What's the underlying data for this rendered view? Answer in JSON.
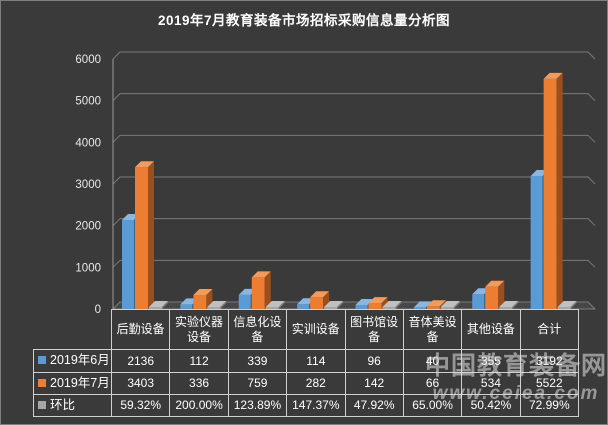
{
  "title": "2019年7月教育装备市场招标采购信息量分析图",
  "watermark": {
    "line1": "中国教育装备网",
    "line2": "www.ceiea.com"
  },
  "colors": {
    "background": "#3A3A3A",
    "frame_border": "#7E7E7E",
    "text": "#FFFFFF",
    "gridline": "#7A7A7A",
    "axis": "#9A9A9A",
    "floor_fill": "#474747",
    "floor_edge": "#909090",
    "table_border": "#D0D0D0",
    "series_blue": "#5B9BD5",
    "series_blue_top": "#8AB6E0",
    "series_blue_side": "#39658C",
    "series_orange": "#ED7D31",
    "series_orange_top": "#F09C60",
    "series_orange_side": "#9C4F1D",
    "series_gray": "#A6A6A6",
    "series_gray_top": "#C0C0C0",
    "series_gray_side": "#7B7B7B"
  },
  "chart_data": {
    "type": "bar",
    "style": "3d-clustered-column",
    "title": "2019年7月教育装备市场招标采购信息量分析图",
    "categories": [
      "后勤设备",
      "实验仪器设备",
      "信息化设备",
      "实训设备",
      "图书馆设备",
      "音体美设备",
      "其他设备",
      "合计"
    ],
    "series": [
      {
        "name": "2019年6月",
        "color": "#5B9BD5",
        "values": [
          2136,
          112,
          339,
          114,
          96,
          40,
          355,
          3192
        ]
      },
      {
        "name": "2019年7月",
        "color": "#ED7D31",
        "values": [
          3403,
          336,
          759,
          282,
          142,
          66,
          534,
          5522
        ]
      },
      {
        "name": "环比",
        "color": "#A6A6A6",
        "values": [
          "59.32%",
          "200.00%",
          "123.89%",
          "147.37%",
          "47.92%",
          "65.00%",
          "50.42%",
          "72.99%"
        ]
      }
    ],
    "xlabel": "",
    "ylabel": "",
    "ylim": [
      0,
      6000
    ],
    "y_ticks": [
      0,
      1000,
      2000,
      3000,
      4000,
      5000,
      6000
    ],
    "grid": true,
    "legend_position": "data-table-left"
  }
}
